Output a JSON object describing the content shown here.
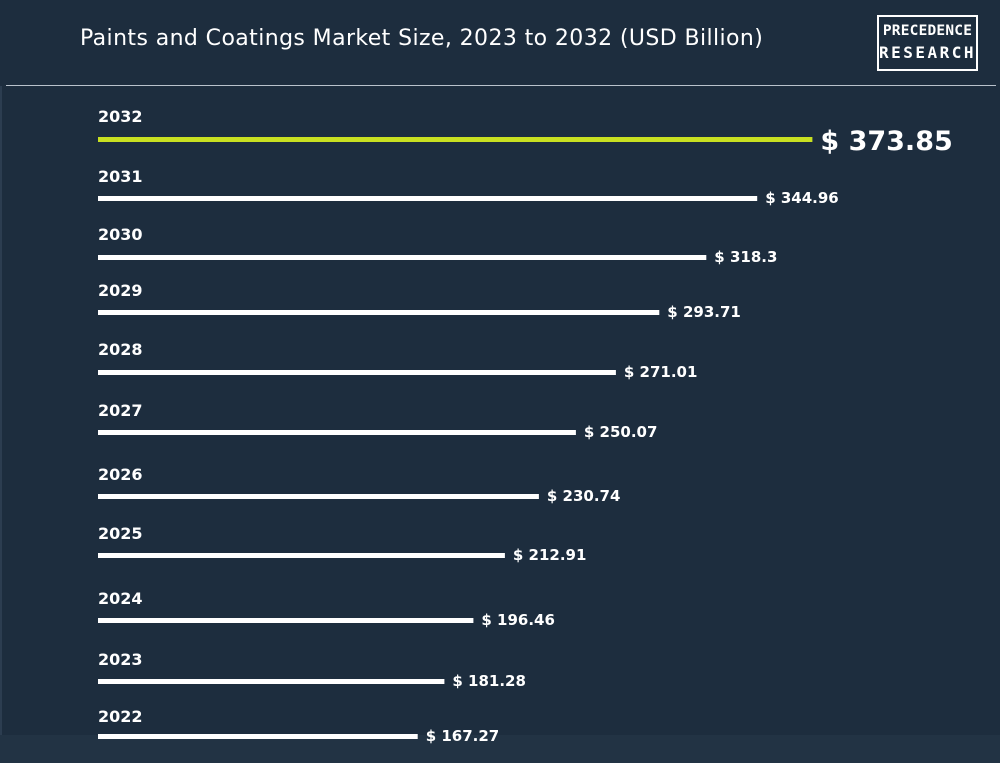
{
  "header": {
    "title": "Paints and Coatings Market Size, 2023 to 2032 (USD Billion)",
    "logo_line1": "PRECEDENCE",
    "logo_line2": "RESEARCH"
  },
  "colors": {
    "background": "#1d2d3e",
    "bar": "#ffffff",
    "highlight_bar": "#c8e021",
    "text": "#ffffff"
  },
  "chart_data": {
    "type": "bar",
    "orientation": "horizontal",
    "title": "Paints and Coatings Market Size, 2023 to 2032 (USD Billion)",
    "categories": [
      "2032",
      "2031",
      "2030",
      "2029",
      "2028",
      "2027",
      "2026",
      "2025",
      "2024",
      "2023",
      "2022"
    ],
    "values": [
      373.85,
      344.96,
      318.3,
      293.71,
      271.01,
      250.07,
      230.74,
      212.91,
      196.46,
      181.28,
      167.27
    ],
    "value_labels": [
      "$ 373.85",
      "$ 344.96",
      "$ 318.3",
      "$ 293.71",
      "$ 271.01",
      "$ 250.07",
      "$ 230.74",
      "$ 212.91",
      "$ 196.46",
      "$ 181.28",
      "$ 167.27"
    ],
    "highlight_category": "2032",
    "xlabel": "",
    "ylabel": "",
    "grid": false,
    "legend": "none"
  }
}
